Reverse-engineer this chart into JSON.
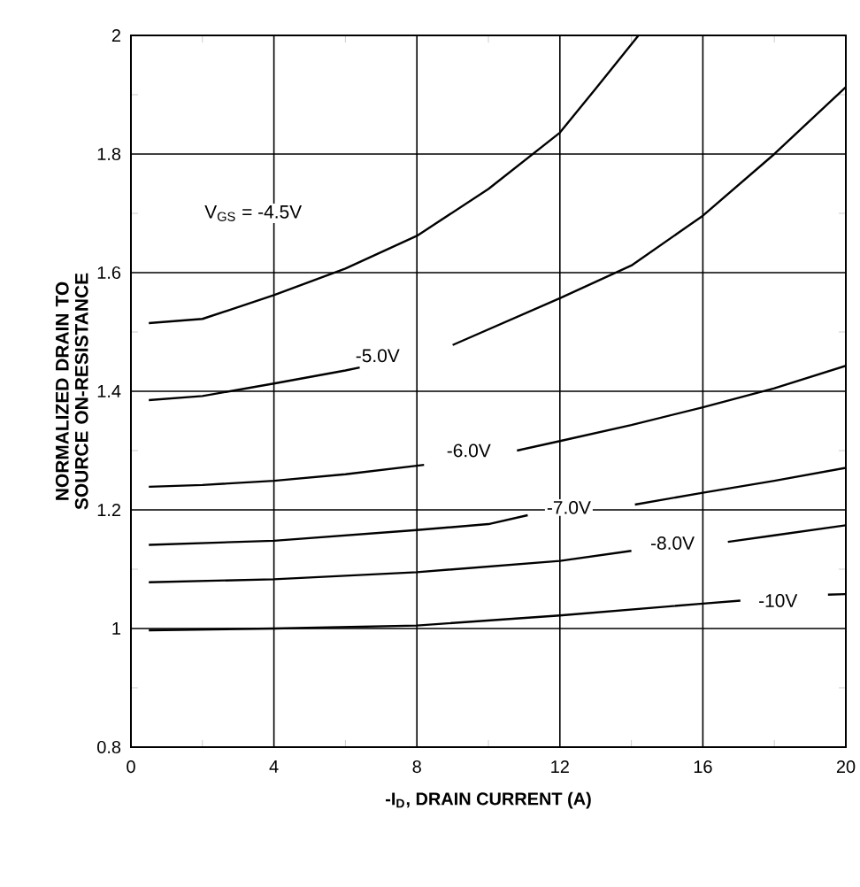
{
  "chart_data": {
    "type": "line",
    "xlabel": "-I$_{D}$, DRAIN CURRENT (A)",
    "ylabel": "NORMALIZED DRAIN TO SOURCE ON-RESISTANCE",
    "xlim": [
      0,
      20
    ],
    "xticks": [
      0,
      4,
      8,
      12,
      16,
      20
    ],
    "ylim": [
      0.8,
      2
    ],
    "yticks": [
      0.8,
      1,
      1.2,
      1.4,
      1.6,
      1.8,
      2
    ],
    "grid": true,
    "series": [
      {
        "color": "#000000",
        "x": [
          0.5,
          2,
          4,
          6,
          8,
          10,
          12,
          13,
          14.2
        ],
        "values": [
          1.515,
          1.522,
          1.562,
          1.607,
          1.662,
          1.741,
          1.836,
          1.91,
          2.0
        ]
      },
      {
        "color": "#000000",
        "x": [
          0.5,
          2,
          4,
          6,
          6.4,
          7.7,
          9.0,
          12,
          14,
          16,
          18,
          20
        ],
        "values": [
          1.385,
          1.392,
          1.413,
          1.435,
          1.44,
          null,
          1.478,
          1.557,
          1.612,
          1.696,
          1.8,
          1.913
        ]
      },
      {
        "color": "#000000",
        "x": [
          0.5,
          2,
          4,
          6,
          8.2,
          9.5,
          10.8,
          12,
          14,
          16,
          18,
          20
        ],
        "values": [
          1.239,
          1.242,
          1.249,
          1.26,
          1.276,
          null,
          1.3,
          1.316,
          1.343,
          1.373,
          1.405,
          1.443
        ]
      },
      {
        "color": "#000000",
        "x": [
          0.5,
          4,
          8,
          10,
          11.1,
          12.6,
          14.1,
          16,
          18,
          20
        ],
        "values": [
          1.141,
          1.148,
          1.166,
          1.176,
          1.191,
          null,
          1.209,
          1.229,
          1.249,
          1.271
        ]
      },
      {
        "color": "#000000",
        "x": [
          0.5,
          4,
          8,
          12,
          14.0,
          15.3,
          16.7,
          18,
          20
        ],
        "values": [
          1.078,
          1.083,
          1.095,
          1.114,
          1.131,
          null,
          1.146,
          1.157,
          1.174
        ]
      },
      {
        "color": "#000000",
        "x": [
          0.5,
          4,
          8,
          12,
          16,
          17.05,
          18.3,
          19.5,
          20
        ],
        "values": [
          0.997,
          1.0,
          1.005,
          1.022,
          1.042,
          1.047,
          null,
          1.057,
          1.058
        ]
      }
    ],
    "annotations": [
      "V$_{GS}$ = -4.5V",
      {
        "text": "-5.0V",
        "x": 6.9,
        "y": 1.46
      },
      {
        "text": "-6.0V",
        "x": 9.45,
        "y": 1.3
      },
      {
        "text": "-7.0V",
        "x": 12.25,
        "y": 1.204
      },
      {
        "text": "-8.0V",
        "x": 15.15,
        "y": 1.144
      },
      {
        "text": "-10V",
        "x": 18.1,
        "y": 1.047
      }
    ]
  }
}
